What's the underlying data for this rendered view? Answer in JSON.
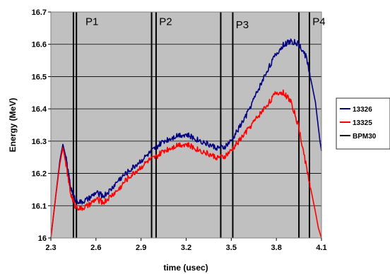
{
  "chart_data": {
    "type": "line",
    "title": "",
    "xlabel": "time (usec)",
    "ylabel": "Energy (MeV)",
    "xlim": [
      2.3,
      4.1
    ],
    "ylim": [
      16.0,
      16.7
    ],
    "x_ticks": [
      "2.3",
      "2.6",
      "2.9",
      "3.2",
      "3.5",
      "3.8",
      "4.1"
    ],
    "y_ticks": [
      "16",
      "16.1",
      "16.2",
      "16.3",
      "16.4",
      "16.5",
      "16.6",
      "16.7"
    ],
    "grid": true,
    "legend_position": "right",
    "background_color": "#c0c0c0",
    "series": [
      {
        "name": "13326",
        "color": "#000080",
        "x": [
          2.3,
          2.33,
          2.36,
          2.38,
          2.4,
          2.43,
          2.46,
          2.5,
          2.55,
          2.6,
          2.65,
          2.7,
          2.75,
          2.8,
          2.85,
          2.9,
          2.95,
          3.0,
          3.05,
          3.1,
          3.15,
          3.2,
          3.25,
          3.3,
          3.35,
          3.4,
          3.45,
          3.5,
          3.55,
          3.6,
          3.65,
          3.7,
          3.75,
          3.8,
          3.85,
          3.9,
          3.95,
          4.0,
          4.03,
          4.06,
          4.09,
          4.1
        ],
        "y": [
          16.0,
          16.12,
          16.24,
          16.29,
          16.25,
          16.16,
          16.12,
          16.11,
          16.12,
          16.14,
          16.13,
          16.15,
          16.18,
          16.2,
          16.22,
          16.24,
          16.26,
          16.28,
          16.3,
          16.31,
          16.32,
          16.32,
          16.31,
          16.3,
          16.29,
          16.28,
          16.28,
          16.3,
          16.34,
          16.38,
          16.43,
          16.48,
          16.53,
          16.57,
          16.6,
          16.61,
          16.6,
          16.56,
          16.49,
          16.42,
          16.3,
          16.27
        ]
      },
      {
        "name": "13325",
        "color": "#ff0000",
        "x": [
          2.3,
          2.33,
          2.36,
          2.38,
          2.4,
          2.43,
          2.46,
          2.5,
          2.55,
          2.6,
          2.65,
          2.7,
          2.75,
          2.8,
          2.85,
          2.9,
          2.95,
          3.0,
          3.05,
          3.1,
          3.15,
          3.2,
          3.25,
          3.3,
          3.35,
          3.4,
          3.45,
          3.5,
          3.55,
          3.6,
          3.65,
          3.7,
          3.75,
          3.8,
          3.85,
          3.9,
          3.95,
          4.0,
          4.03,
          4.06,
          4.08,
          4.1
        ],
        "y": [
          16.0,
          16.12,
          16.23,
          16.28,
          16.23,
          16.14,
          16.1,
          16.09,
          16.1,
          16.12,
          16.11,
          16.13,
          16.15,
          16.18,
          16.2,
          16.22,
          16.24,
          16.25,
          16.27,
          16.28,
          16.29,
          16.29,
          16.28,
          16.27,
          16.26,
          16.25,
          16.25,
          16.27,
          16.3,
          16.33,
          16.36,
          16.39,
          16.42,
          16.45,
          16.45,
          16.42,
          16.34,
          16.22,
          16.15,
          16.08,
          16.03,
          16.0
        ]
      },
      {
        "name": "BPM30",
        "color": "#000000",
        "type": "vertical-lines",
        "x": [
          2.45,
          2.47,
          2.97,
          3.0,
          3.43,
          3.51,
          3.95,
          4.02
        ]
      }
    ],
    "annotations": [
      {
        "text": "P1",
        "x": 2.53,
        "y": 16.66
      },
      {
        "text": "P2",
        "x": 3.02,
        "y": 16.66
      },
      {
        "text": "P3",
        "x": 3.53,
        "y": 16.65
      },
      {
        "text": "P4",
        "x": 4.04,
        "y": 16.66
      }
    ]
  }
}
